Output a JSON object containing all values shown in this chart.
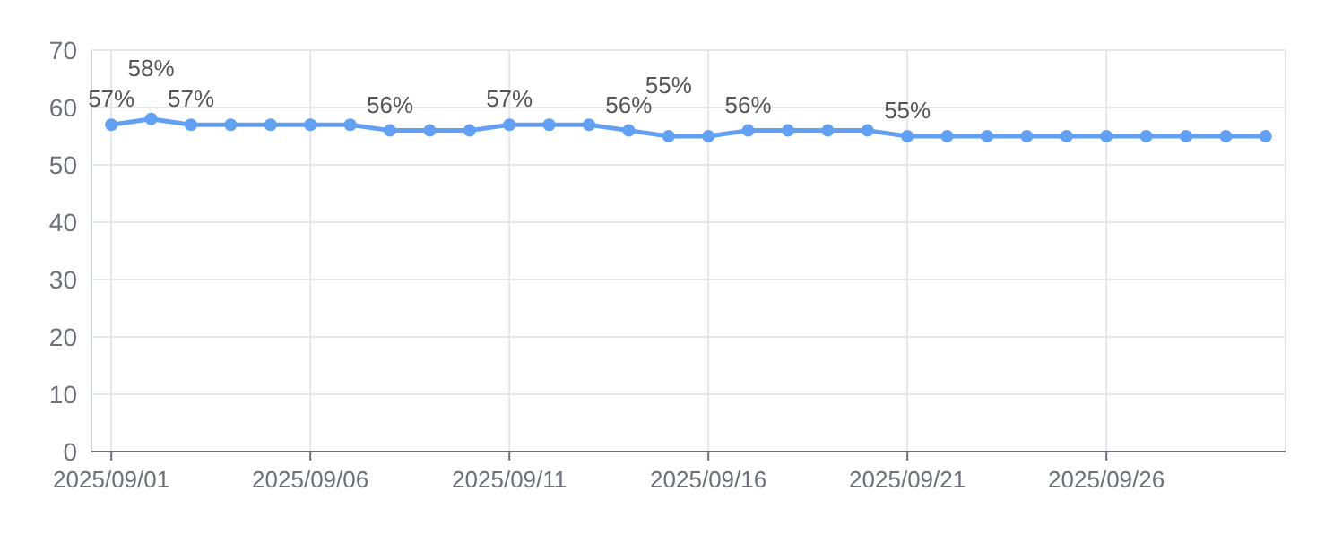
{
  "chart_data": {
    "type": "line",
    "categories": [
      "2025/09/01",
      null,
      null,
      null,
      null,
      "2025/09/06",
      null,
      null,
      null,
      null,
      "2025/09/11",
      null,
      null,
      null,
      null,
      "2025/09/16",
      null,
      null,
      null,
      null,
      "2025/09/21",
      null,
      null,
      null,
      null,
      "2025/09/26",
      null,
      null,
      null,
      null
    ],
    "series": [
      {
        "color": "#62a0f4",
        "values": [
          57,
          58,
          57,
          57,
          57,
          57,
          57,
          56,
          56,
          56,
          57,
          57,
          57,
          56,
          55,
          55,
          56,
          56,
          56,
          56,
          55,
          55,
          55,
          55,
          55,
          55,
          55,
          55,
          55,
          55
        ],
        "value_labels": [
          "57%",
          "58%",
          "57%",
          null,
          null,
          null,
          null,
          "56%",
          null,
          null,
          "57%",
          null,
          null,
          "56%",
          "55%",
          null,
          "56%",
          null,
          null,
          null,
          "55%",
          null,
          null,
          null,
          null,
          null,
          null,
          null,
          null,
          null
        ]
      }
    ],
    "ylim": [
      0,
      70
    ],
    "yticks": [
      0,
      10,
      20,
      30,
      40,
      50,
      60,
      70
    ],
    "grid": true,
    "marker": "circle",
    "line_style": "solid"
  }
}
